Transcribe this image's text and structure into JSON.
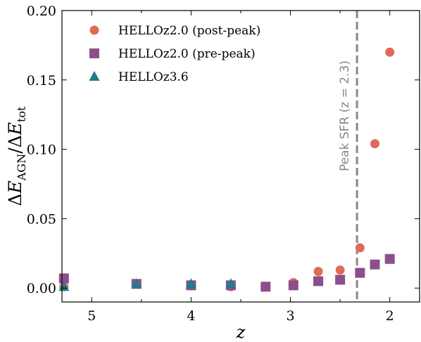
{
  "chart_data": {
    "type": "scatter",
    "xlabel": "z",
    "ylabel": "ΔE_AGN/ΔE_tot",
    "xlim": [
      5.3,
      1.7
    ],
    "ylim": [
      -0.01,
      0.2
    ],
    "x_inverted": true,
    "xticks": [
      5,
      4,
      3,
      2
    ],
    "xtick_labels": [
      "5",
      "4",
      "3",
      "2"
    ],
    "yticks": [
      0.0,
      0.05,
      0.1,
      0.15,
      0.2
    ],
    "ytick_labels": [
      "0.00",
      "0.05",
      "0.10",
      "0.15",
      "0.20"
    ],
    "legend_position": "top-left",
    "grid": false,
    "series": [
      {
        "name": "HELLOz2.0 (post-peak)",
        "marker": "circle",
        "color": "#e0695a",
        "points": [
          {
            "x": 5.28,
            "y": 0.001
          },
          {
            "x": 4.55,
            "y": 0.003
          },
          {
            "x": 4.0,
            "y": 0.002
          },
          {
            "x": 3.6,
            "y": 0.001
          },
          {
            "x": 3.25,
            "y": 0.001
          },
          {
            "x": 2.97,
            "y": 0.004
          },
          {
            "x": 2.72,
            "y": 0.012
          },
          {
            "x": 2.5,
            "y": 0.013
          },
          {
            "x": 2.3,
            "y": 0.029
          },
          {
            "x": 2.15,
            "y": 0.104
          },
          {
            "x": 2.0,
            "y": 0.17
          }
        ]
      },
      {
        "name": "HELLOz2.0 (pre-peak)",
        "marker": "square",
        "color": "#8c4f8c",
        "points": [
          {
            "x": 5.28,
            "y": 0.007
          },
          {
            "x": 4.55,
            "y": 0.003
          },
          {
            "x": 4.0,
            "y": 0.002
          },
          {
            "x": 3.6,
            "y": 0.002
          },
          {
            "x": 3.25,
            "y": 0.001
          },
          {
            "x": 2.97,
            "y": 0.002
          },
          {
            "x": 2.72,
            "y": 0.005
          },
          {
            "x": 2.5,
            "y": 0.006
          },
          {
            "x": 2.3,
            "y": 0.011
          },
          {
            "x": 2.15,
            "y": 0.017
          },
          {
            "x": 2.0,
            "y": 0.021
          }
        ]
      },
      {
        "name": "HELLOz3.6",
        "marker": "triangle",
        "color": "#227a8a",
        "points": [
          {
            "x": 5.28,
            "y": 0.001
          },
          {
            "x": 4.55,
            "y": 0.003
          },
          {
            "x": 4.0,
            "y": 0.003
          },
          {
            "x": 3.6,
            "y": 0.003
          }
        ]
      }
    ],
    "vline": {
      "x": 2.33,
      "color": "#888888",
      "style": "dashed",
      "label": "Peak SFR (z = 2.3)"
    }
  }
}
